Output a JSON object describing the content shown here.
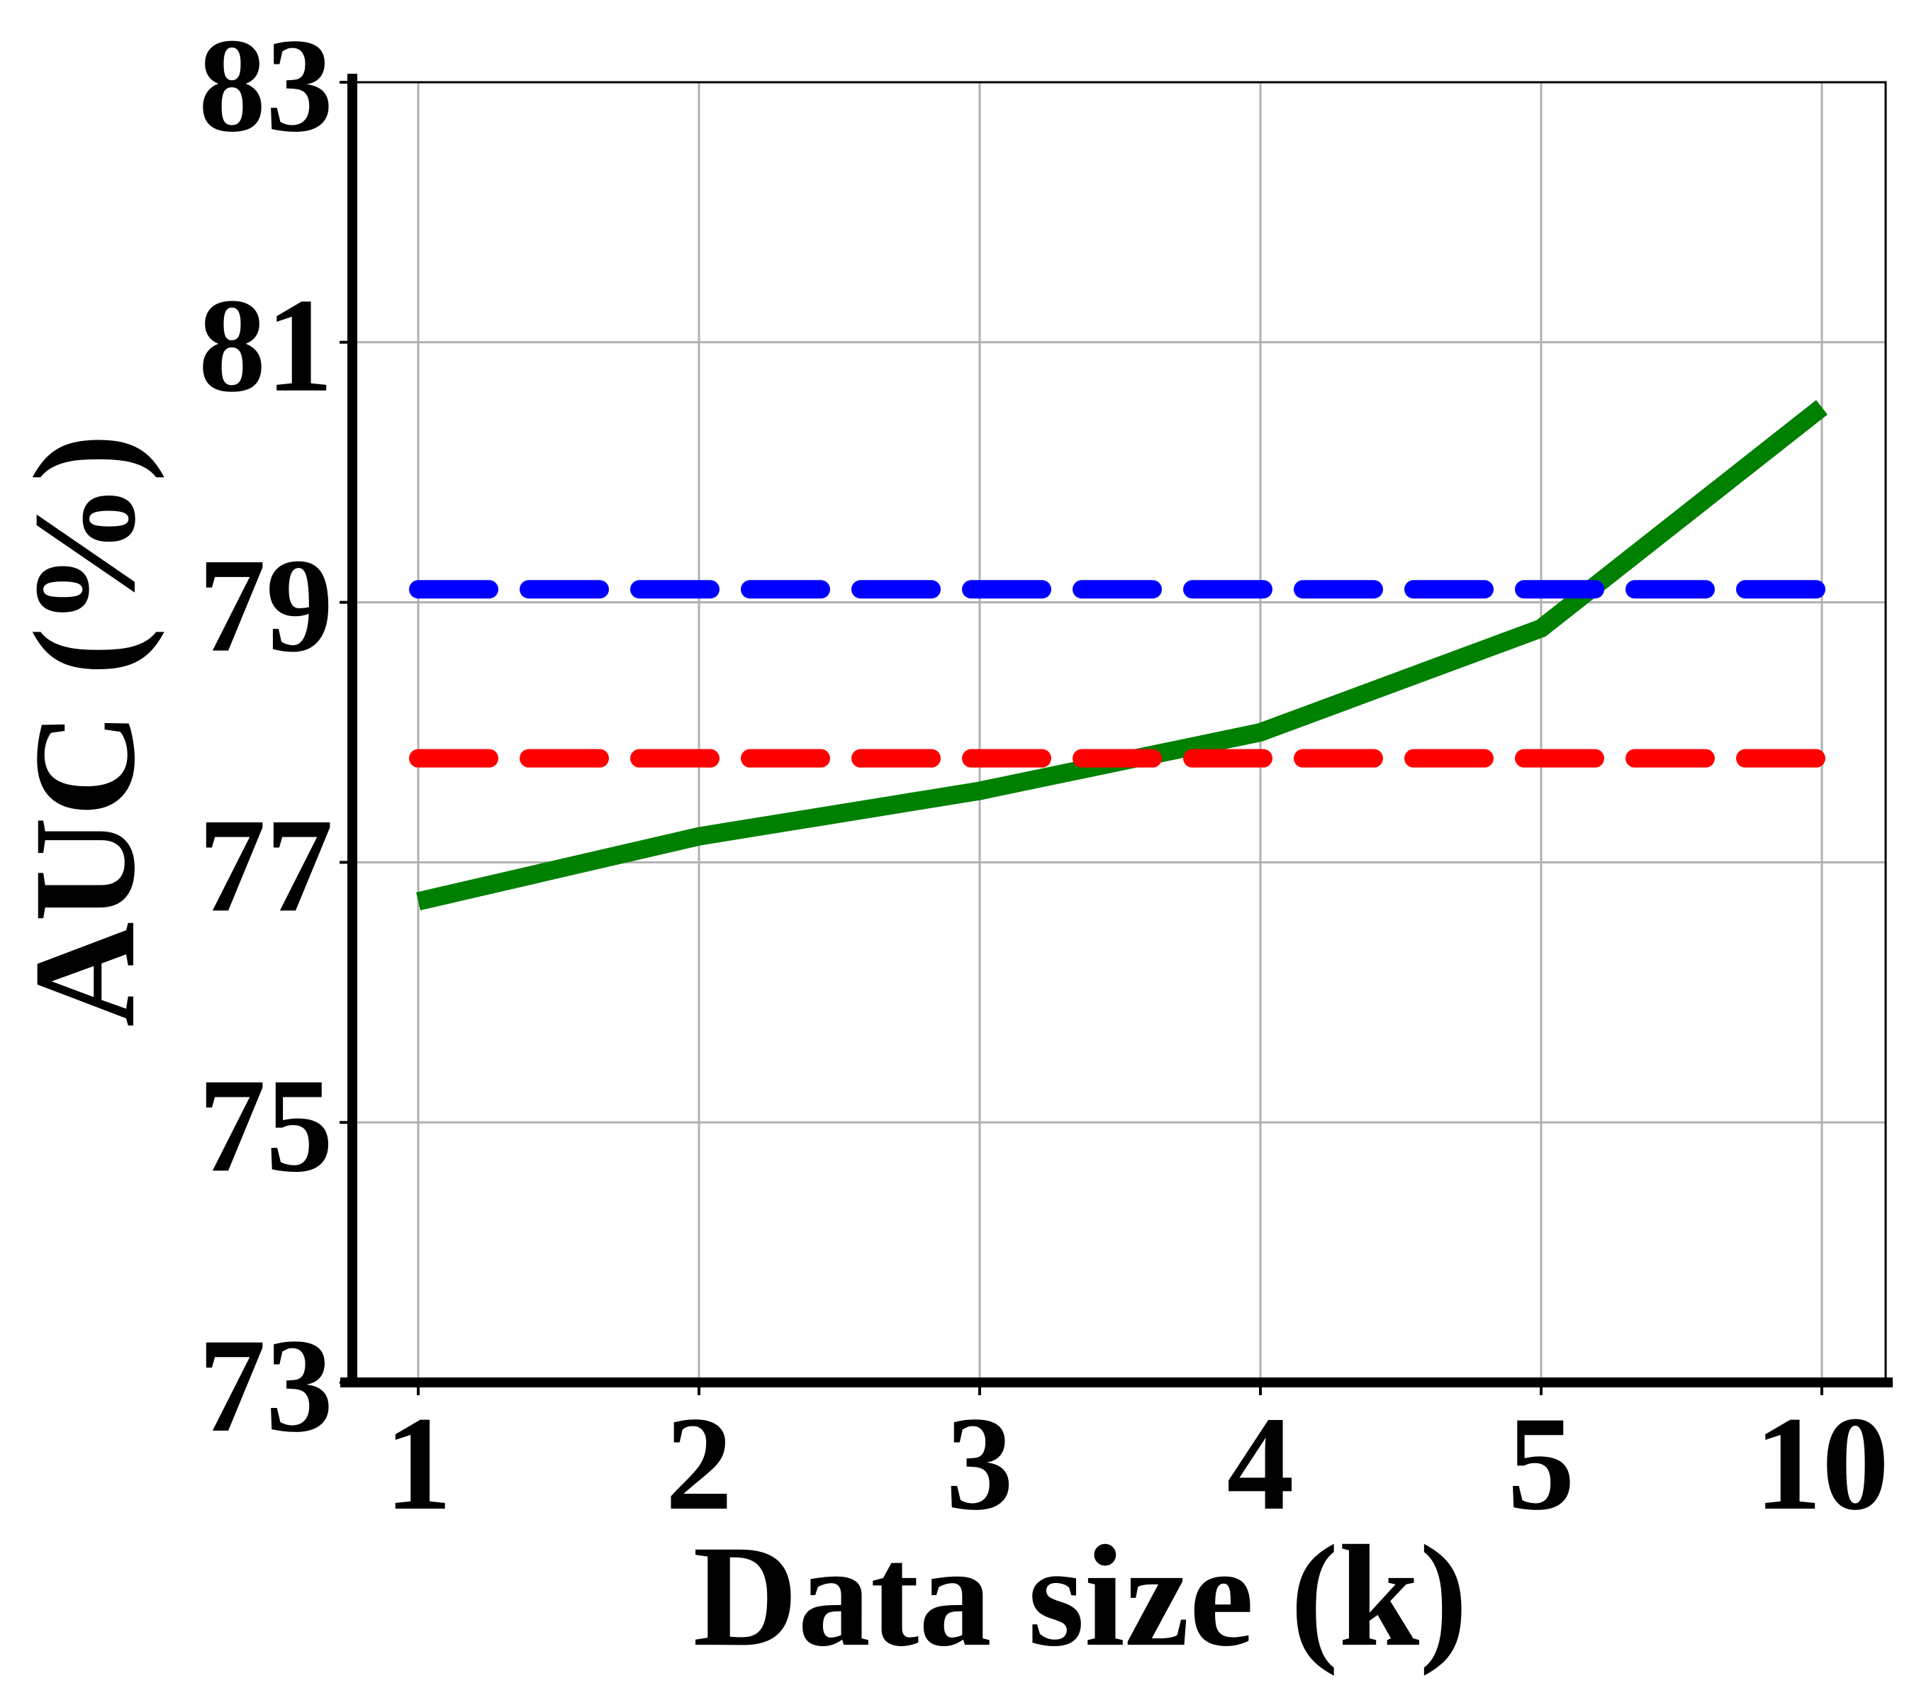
{
  "chart_data": {
    "type": "line",
    "title": "",
    "xlabel": "Data size (k)",
    "ylabel": "AUC (%)",
    "categories": [
      "1",
      "2",
      "3",
      "4",
      "5",
      "10"
    ],
    "ylim": [
      73,
      83
    ],
    "yticks": [
      "73",
      "75",
      "77",
      "79",
      "81",
      "83"
    ],
    "grid": true,
    "legend": "none",
    "series": [
      {
        "style": "solid",
        "color": "#008000",
        "values": [
          76.7,
          77.2,
          77.55,
          78.0,
          78.8,
          80.5
        ]
      },
      {
        "style": "dashed",
        "color": "#0000ff",
        "values": [
          79.1,
          79.1,
          79.1,
          79.1,
          79.1,
          79.1
        ]
      },
      {
        "style": "dashed",
        "color": "#ff0000",
        "values": [
          77.8,
          77.8,
          77.8,
          77.8,
          77.8,
          77.8
        ]
      }
    ]
  }
}
